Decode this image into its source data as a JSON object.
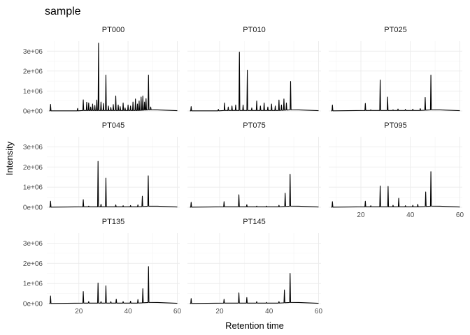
{
  "chart_data": {
    "type": "line",
    "title": "sample",
    "xlabel": "Retention time",
    "ylabel": "Intensity",
    "xlim": [
      7,
      61
    ],
    "ylim": [
      0,
      3500000
    ],
    "x_ticks": [
      20,
      40,
      60
    ],
    "x_tick_labels": [
      "20",
      "40",
      "60"
    ],
    "y_ticks": [
      0,
      1000000,
      2000000,
      3000000
    ],
    "y_tick_labels": [
      "0e+00",
      "1e+06",
      "2e+06",
      "3e+06"
    ],
    "grid": true,
    "facets": [
      {
        "name": "PT000",
        "peaks": [
          [
            8.5,
            330000
          ],
          [
            19.5,
            130000
          ],
          [
            21.8,
            560000
          ],
          [
            23.2,
            440000
          ],
          [
            24.0,
            400000
          ],
          [
            24.8,
            200000
          ],
          [
            25.6,
            350000
          ],
          [
            26.5,
            280000
          ],
          [
            27.3,
            550000
          ],
          [
            28.0,
            3400000
          ],
          [
            29.0,
            450000
          ],
          [
            30.0,
            380000
          ],
          [
            31.0,
            1800000
          ],
          [
            32.0,
            250000
          ],
          [
            33.0,
            180000
          ],
          [
            34.0,
            320000
          ],
          [
            35.0,
            750000
          ],
          [
            36.0,
            300000
          ],
          [
            36.8,
            220000
          ],
          [
            38.0,
            400000
          ],
          [
            38.8,
            150000
          ],
          [
            40.0,
            300000
          ],
          [
            41.0,
            250000
          ],
          [
            42.0,
            450000
          ],
          [
            43.0,
            600000
          ],
          [
            43.8,
            350000
          ],
          [
            44.5,
            500000
          ],
          [
            45.3,
            700000
          ],
          [
            46.0,
            750000
          ],
          [
            46.7,
            450000
          ],
          [
            47.3,
            620000
          ],
          [
            48.3,
            1800000
          ],
          [
            49.2,
            200000
          ]
        ]
      },
      {
        "name": "PT010",
        "peaks": [
          [
            8.5,
            220000
          ],
          [
            19.5,
            80000
          ],
          [
            22.0,
            400000
          ],
          [
            23.5,
            200000
          ],
          [
            25.0,
            250000
          ],
          [
            26.5,
            300000
          ],
          [
            28.0,
            2950000
          ],
          [
            29.5,
            300000
          ],
          [
            31.2,
            2050000
          ],
          [
            33.0,
            150000
          ],
          [
            35.0,
            500000
          ],
          [
            36.5,
            250000
          ],
          [
            38.0,
            400000
          ],
          [
            39.5,
            200000
          ],
          [
            41.0,
            350000
          ],
          [
            42.5,
            250000
          ],
          [
            44.0,
            550000
          ],
          [
            45.0,
            300000
          ],
          [
            46.0,
            600000
          ],
          [
            47.0,
            400000
          ],
          [
            48.7,
            1480000
          ]
        ]
      },
      {
        "name": "PT025",
        "peaks": [
          [
            8.5,
            300000
          ],
          [
            21.8,
            380000
          ],
          [
            24.0,
            60000
          ],
          [
            27.8,
            1550000
          ],
          [
            30.8,
            700000
          ],
          [
            33.0,
            60000
          ],
          [
            35.0,
            100000
          ],
          [
            38.0,
            80000
          ],
          [
            41.0,
            90000
          ],
          [
            44.0,
            120000
          ],
          [
            46.0,
            680000
          ],
          [
            48.3,
            1800000
          ]
        ]
      },
      {
        "name": "PT045",
        "peaks": [
          [
            8.5,
            300000
          ],
          [
            21.8,
            380000
          ],
          [
            24.0,
            60000
          ],
          [
            27.8,
            2280000
          ],
          [
            29.0,
            150000
          ],
          [
            31.0,
            1450000
          ],
          [
            35.0,
            120000
          ],
          [
            38.0,
            80000
          ],
          [
            41.0,
            90000
          ],
          [
            44.0,
            120000
          ],
          [
            45.8,
            550000
          ],
          [
            48.2,
            1560000
          ]
        ]
      },
      {
        "name": "PT075",
        "peaks": [
          [
            8.5,
            250000
          ],
          [
            21.8,
            280000
          ],
          [
            27.8,
            620000
          ],
          [
            31.0,
            130000
          ],
          [
            35.0,
            60000
          ],
          [
            39.0,
            60000
          ],
          [
            44.0,
            100000
          ],
          [
            46.5,
            700000
          ],
          [
            48.5,
            1640000
          ]
        ]
      },
      {
        "name": "PT095",
        "peaks": [
          [
            8.5,
            280000
          ],
          [
            21.8,
            300000
          ],
          [
            24.0,
            80000
          ],
          [
            27.8,
            1060000
          ],
          [
            31.0,
            1040000
          ],
          [
            33.0,
            100000
          ],
          [
            35.3,
            450000
          ],
          [
            38.0,
            80000
          ],
          [
            41.0,
            100000
          ],
          [
            43.0,
            150000
          ],
          [
            46.2,
            760000
          ],
          [
            48.3,
            1770000
          ]
        ]
      },
      {
        "name": "PT135",
        "peaks": [
          [
            8.5,
            380000
          ],
          [
            21.8,
            600000
          ],
          [
            24.0,
            100000
          ],
          [
            27.8,
            1020000
          ],
          [
            29.0,
            100000
          ],
          [
            31.0,
            880000
          ],
          [
            33.0,
            100000
          ],
          [
            35.2,
            220000
          ],
          [
            38.0,
            100000
          ],
          [
            41.0,
            120000
          ],
          [
            44.0,
            200000
          ],
          [
            46.0,
            740000
          ],
          [
            48.3,
            1840000
          ]
        ]
      },
      {
        "name": "PT145",
        "peaks": [
          [
            8.5,
            250000
          ],
          [
            21.8,
            220000
          ],
          [
            27.8,
            530000
          ],
          [
            31.0,
            300000
          ],
          [
            35.0,
            100000
          ],
          [
            39.0,
            60000
          ],
          [
            44.0,
            100000
          ],
          [
            46.2,
            680000
          ],
          [
            48.5,
            1500000
          ]
        ]
      }
    ]
  }
}
